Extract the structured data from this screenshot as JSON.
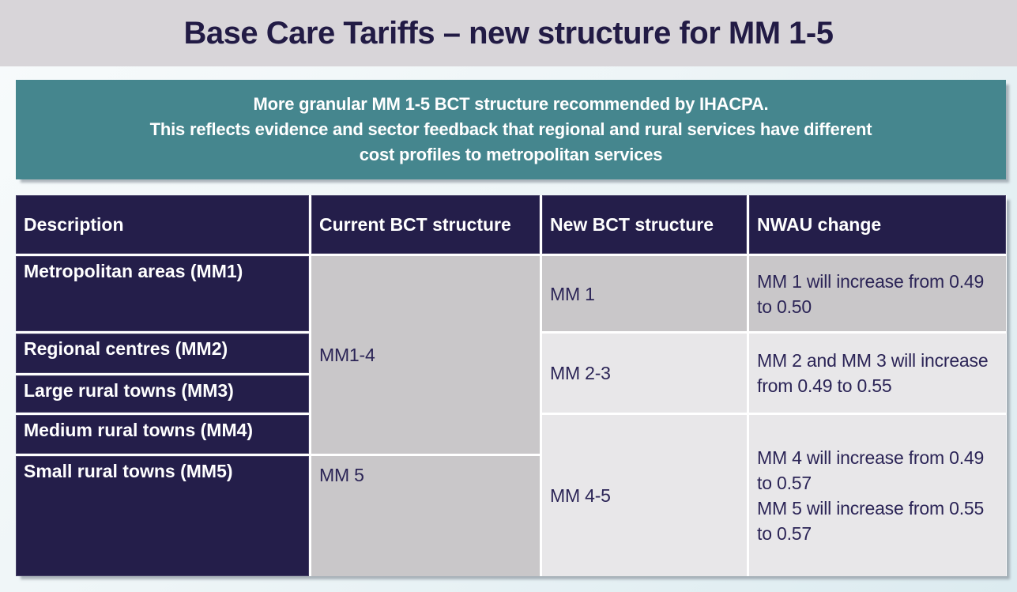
{
  "slide": {
    "title": "Base Care Tariffs – new structure for MM 1-5",
    "callout": {
      "lines": [
        "More granular MM 1-5 BCT structure recommended by IHACPA.",
        "This reflects evidence and sector feedback that regional and rural services have different",
        "cost profiles to metropolitan services"
      ]
    }
  },
  "table": {
    "headers": {
      "description": "Description",
      "current": "Current BCT structure",
      "new": "New BCT structure",
      "nwau": "NWAU change"
    },
    "descriptions": [
      "Metropolitan areas (MM1)",
      "Regional centres (MM2)",
      "Large rural towns (MM3)",
      "Medium rural towns (MM4)",
      "Small rural towns (MM5)"
    ],
    "current_structure": [
      "MM1-4",
      "MM 5"
    ],
    "new_structure": [
      "MM 1",
      "MM 2-3",
      "MM 4-5"
    ],
    "nwau_changes": [
      [
        "MM 1 will increase from 0.49 to 0.50"
      ],
      [
        "MM 2 and MM 3 will increase from 0.49 to 0.55"
      ],
      [
        "MM 4 will increase from 0.49 to 0.57",
        "MM 5 will increase from 0.55 to 0.57"
      ]
    ]
  },
  "colors": {
    "navy": "#241e4a",
    "teal": "#45868e",
    "banner_gray": "#d8d5d9",
    "cell_gray_dark": "#c9c7c9",
    "cell_gray_light": "#e8e7e9",
    "body_text": "#2b2456"
  }
}
